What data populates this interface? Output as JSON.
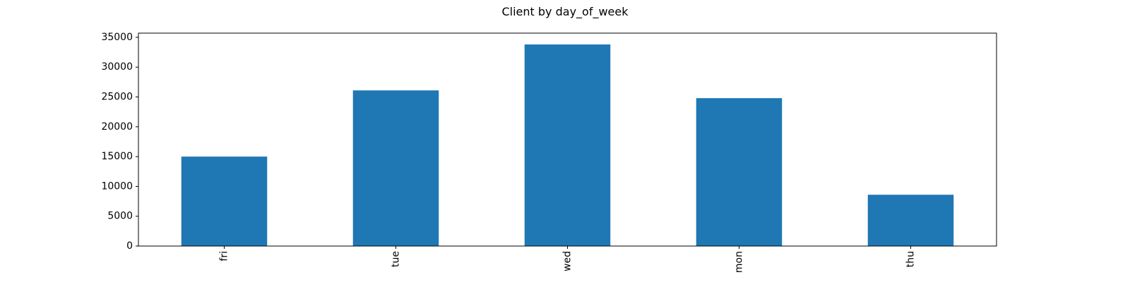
{
  "chart_data": {
    "type": "bar",
    "title": "Client by day_of_week",
    "xlabel": "",
    "ylabel": "",
    "categories": [
      "fri",
      "tue",
      "wed",
      "mon",
      "thu"
    ],
    "values": [
      15000,
      26100,
      33800,
      24800,
      8600
    ],
    "ylim": [
      0,
      35700
    ],
    "yticks": [
      0,
      5000,
      10000,
      15000,
      20000,
      25000,
      30000,
      35000
    ],
    "ytick_labels": [
      "0",
      "5000",
      "10000",
      "15000",
      "20000",
      "25000",
      "30000",
      "35000"
    ],
    "bar_color": "#1f77b4",
    "grid": false,
    "legend": "none"
  }
}
